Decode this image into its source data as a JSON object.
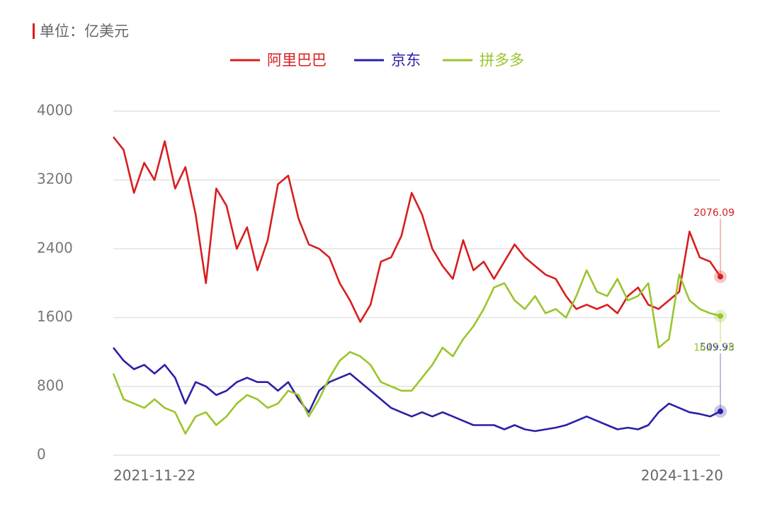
{
  "chart_data": {
    "type": "line",
    "title": "单位：亿美元",
    "categories": [
      "2021-11-22",
      null,
      null,
      null,
      null,
      null,
      null,
      null,
      null,
      null,
      null,
      null,
      null,
      null,
      null,
      null,
      null,
      null,
      null,
      null,
      null,
      null,
      null,
      null,
      null,
      null,
      null,
      null,
      null,
      null,
      null,
      null,
      null,
      null,
      null,
      null,
      null,
      null,
      null,
      null,
      null,
      null,
      null,
      null,
      null,
      null,
      null,
      null,
      null,
      null,
      null,
      null,
      null,
      null,
      null,
      null,
      null,
      null,
      null,
      "2024-11-20"
    ],
    "series": [
      {
        "name": "阿里巴巴",
        "color": "#d81e1e",
        "values": [
          3700,
          3550,
          3050,
          3400,
          3200,
          3650,
          3100,
          3350,
          2800,
          2000,
          3100,
          2900,
          2400,
          2650,
          2150,
          2500,
          3150,
          3250,
          2750,
          2450,
          2400,
          2300,
          2000,
          1800,
          1550,
          1750,
          2250,
          2300,
          2550,
          3050,
          2800,
          2400,
          2200,
          2050,
          2500,
          2150,
          2250,
          2050,
          2250,
          2450,
          2300,
          2200,
          2100,
          2050,
          1850,
          1700,
          1750,
          1700,
          1750,
          1650,
          1850,
          1950,
          1750,
          1700,
          1800,
          1900,
          2600,
          2300,
          2250,
          2076.09
        ]
      },
      {
        "name": "京东",
        "color": "#2a1fa8",
        "values": [
          1250,
          1100,
          1000,
          1050,
          950,
          1050,
          900,
          600,
          850,
          800,
          700,
          750,
          850,
          900,
          850,
          850,
          750,
          850,
          650,
          500,
          750,
          850,
          900,
          950,
          850,
          750,
          650,
          550,
          500,
          450,
          500,
          450,
          500,
          450,
          400,
          350,
          350,
          350,
          300,
          350,
          300,
          280,
          300,
          320,
          350,
          400,
          450,
          400,
          350,
          300,
          320,
          300,
          350,
          500,
          600,
          550,
          500,
          480,
          450,
          509.93
        ]
      },
      {
        "name": "拼多多",
        "color": "#9ac52b",
        "values": [
          950,
          650,
          600,
          550,
          650,
          550,
          500,
          250,
          450,
          500,
          350,
          450,
          600,
          700,
          650,
          550,
          600,
          750,
          700,
          450,
          650,
          900,
          1100,
          1200,
          1150,
          1050,
          850,
          800,
          750,
          750,
          900,
          1050,
          1250,
          1150,
          1350,
          1500,
          1700,
          1950,
          2000,
          1800,
          1700,
          1850,
          1650,
          1700,
          1600,
          1850,
          2150,
          1900,
          1850,
          2050,
          1800,
          1850,
          2000,
          1250,
          1350,
          2100,
          1800,
          1700,
          1650,
          1617.78
        ]
      }
    ],
    "ylim": [
      0,
      4000
    ],
    "yticks": [
      0,
      800,
      1600,
      2400,
      3200,
      4000
    ],
    "grid": true
  }
}
